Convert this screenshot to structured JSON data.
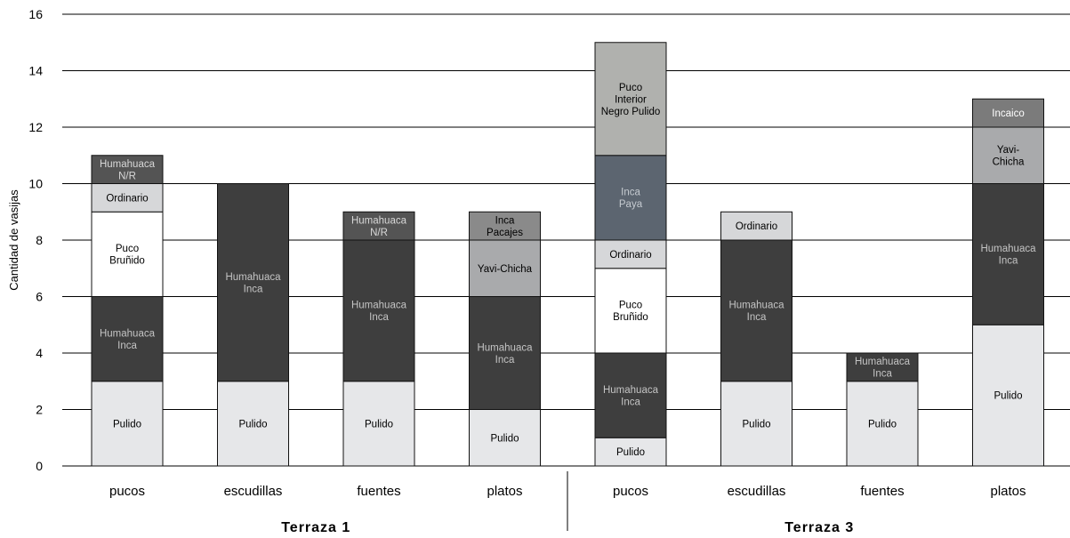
{
  "chart_data": {
    "type": "bar",
    "stacked": true,
    "title": "",
    "ylabel": "Cantidad de vasijas",
    "xlabel": "",
    "ylim": [
      0,
      16
    ],
    "yticks": [
      0,
      2,
      4,
      6,
      8,
      10,
      12,
      14,
      16
    ],
    "grid": true,
    "groups": [
      {
        "name": "Terraza 1",
        "bars": [
          {
            "category": "pucos",
            "segments": [
              {
                "label": "Pulido",
                "value": 3,
                "color": "#e6e7e9",
                "text_color": "#000000"
              },
              {
                "label": "Humahuaca\nInca",
                "value": 3,
                "color": "#3e3e3e",
                "text_color": "#c4c4c4"
              },
              {
                "label": "Puco\nBruñido",
                "value": 3,
                "color": "#ffffff",
                "text_color": "#000000"
              },
              {
                "label": "Ordinario",
                "value": 1,
                "color": "#d6d7d9",
                "text_color": "#000000"
              },
              {
                "label": "Humahuaca\nN/R",
                "value": 1,
                "color": "#545454",
                "text_color": "#d8d8d8"
              }
            ]
          },
          {
            "category": "escudillas",
            "segments": [
              {
                "label": "Pulido",
                "value": 3,
                "color": "#e6e7e9",
                "text_color": "#000000"
              },
              {
                "label": "Humahuaca\nInca",
                "value": 7,
                "color": "#3e3e3e",
                "text_color": "#c4c4c4"
              }
            ]
          },
          {
            "category": "fuentes",
            "segments": [
              {
                "label": "Pulido",
                "value": 3,
                "color": "#e6e7e9",
                "text_color": "#000000"
              },
              {
                "label": "Humahuaca\nInca",
                "value": 5,
                "color": "#3e3e3e",
                "text_color": "#c4c4c4"
              },
              {
                "label": "Humahuaca\nN/R",
                "value": 1,
                "color": "#545454",
                "text_color": "#d8d8d8"
              }
            ]
          },
          {
            "category": "platos",
            "segments": [
              {
                "label": "Pulido",
                "value": 2,
                "color": "#e6e7e9",
                "text_color": "#000000"
              },
              {
                "label": "Humahuaca\nInca",
                "value": 4,
                "color": "#3e3e3e",
                "text_color": "#c4c4c4"
              },
              {
                "label": "Yavi-Chicha",
                "value": 2,
                "color": "#a9aaac",
                "text_color": "#000000"
              },
              {
                "label": "Inca\nPacajes",
                "value": 1,
                "color": "#8a8a8a",
                "text_color": "#000000"
              }
            ]
          }
        ]
      },
      {
        "name": "Terraza 3",
        "bars": [
          {
            "category": "pucos",
            "segments": [
              {
                "label": "Pulido",
                "value": 1,
                "color": "#e6e7e9",
                "text_color": "#000000"
              },
              {
                "label": "Humahuaca\nInca",
                "value": 3,
                "color": "#3e3e3e",
                "text_color": "#c4c4c4"
              },
              {
                "label": "Puco\nBruñido",
                "value": 3,
                "color": "#ffffff",
                "text_color": "#000000"
              },
              {
                "label": "Ordinario",
                "value": 1,
                "color": "#d6d7d9",
                "text_color": "#000000"
              },
              {
                "label": "Inca\nPaya",
                "value": 3,
                "color": "#5c6570",
                "text_color": "#c6cbd1"
              },
              {
                "label": "Puco\nInterior\nNegro Pulido",
                "value": 4,
                "color": "#b0b1ae",
                "text_color": "#000000"
              }
            ]
          },
          {
            "category": "escudillas",
            "segments": [
              {
                "label": "Pulido",
                "value": 3,
                "color": "#e6e7e9",
                "text_color": "#000000"
              },
              {
                "label": "Humahuaca\nInca",
                "value": 5,
                "color": "#3e3e3e",
                "text_color": "#c4c4c4"
              },
              {
                "label": "Ordinario",
                "value": 1,
                "color": "#d6d7d9",
                "text_color": "#000000"
              }
            ]
          },
          {
            "category": "fuentes",
            "segments": [
              {
                "label": "Pulido",
                "value": 3,
                "color": "#e6e7e9",
                "text_color": "#000000"
              },
              {
                "label": "Humahuaca\nInca",
                "value": 1,
                "color": "#3e3e3e",
                "text_color": "#c4c4c4"
              }
            ]
          },
          {
            "category": "platos",
            "segments": [
              {
                "label": "Pulido",
                "value": 5,
                "color": "#e6e7e9",
                "text_color": "#000000"
              },
              {
                "label": "Humahuaca\nInca",
                "value": 5,
                "color": "#3e3e3e",
                "text_color": "#c4c4c4"
              },
              {
                "label": "Yavi-\nChicha",
                "value": 2,
                "color": "#a9aaac",
                "text_color": "#000000"
              },
              {
                "label": "Incaico",
                "value": 1,
                "color": "#7b7b7b",
                "text_color": "#ffffff"
              }
            ]
          }
        ]
      }
    ]
  }
}
